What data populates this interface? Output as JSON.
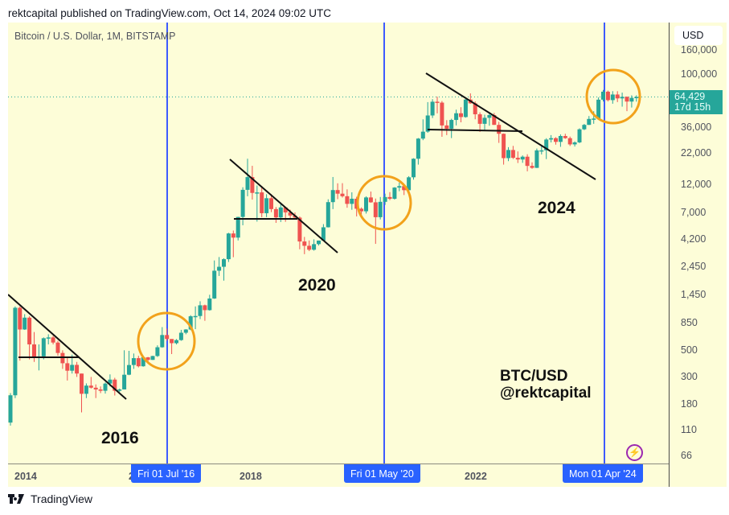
{
  "header": {
    "published": "rektcapital published on TradingView.com, Oct 14, 2024 09:02 UTC"
  },
  "chart": {
    "symbol_label": "Bitcoin / U.S. Dollar, 1M, BITSTAMP",
    "currency": "USD",
    "last_price": "64,429",
    "countdown": "17d 15h",
    "price_ticks": [
      "160,000",
      "100,000",
      "36,000",
      "22,000",
      "12,000",
      "7,000",
      "4,200",
      "2,450",
      "1,450",
      "850",
      "500",
      "300",
      "180",
      "110",
      "66"
    ],
    "year_labels": [
      "2014",
      "2",
      "2018",
      "2022"
    ],
    "date_badges": [
      "Fri 01 Jul '16",
      "Fri 01 May '20",
      "Mon 01 Apr '24"
    ],
    "annotations": {
      "y2016": "2016",
      "y2020": "2020",
      "y2024": "2024",
      "pair": "BTC/USD",
      "handle": "@rektcapital"
    },
    "colors": {
      "up": "#26a69a",
      "down": "#ef5350",
      "halving_line": "#3d5afe",
      "circle": "#f2a21b",
      "background": "#fdfdd8",
      "badge": "#2962ff",
      "bolt": "#9c27b0"
    }
  },
  "footer": {
    "brand": "TradingView"
  },
  "chart_data": {
    "type": "candlestick",
    "title": "Bitcoin / U.S. Dollar, 1M, BITSTAMP",
    "yscale": "log",
    "ylim": [
      60,
      180000
    ],
    "y_ticks": [
      160000,
      100000,
      36000,
      22000,
      12000,
      7000,
      4200,
      2450,
      1450,
      850,
      500,
      300,
      180,
      110,
      66
    ],
    "x_ticks": [
      "2014",
      "2016",
      "2018",
      "2020",
      "2022",
      "2024"
    ],
    "halving_markers": [
      "2016-07-01",
      "2020-05-01",
      "2024-04-01"
    ],
    "last_price": 64429,
    "start_month": "2013-10",
    "candles_ohlc": [
      [
        125,
        211,
        220,
        118
      ],
      [
        211,
        1130,
        1160,
        200
      ],
      [
        1130,
        745,
        1160,
        410
      ],
      [
        745,
        935,
        1000,
        740
      ],
      [
        935,
        560,
        960,
        420
      ],
      [
        560,
        440,
        710,
        400
      ],
      [
        440,
        445,
        560,
        340
      ],
      [
        445,
        630,
        640,
        420
      ],
      [
        630,
        640,
        680,
        560
      ],
      [
        640,
        580,
        660,
        560
      ],
      [
        580,
        475,
        600,
        450
      ],
      [
        475,
        390,
        500,
        350
      ],
      [
        390,
        338,
        440,
        280
      ],
      [
        338,
        378,
        460,
        320
      ],
      [
        378,
        320,
        400,
        300
      ],
      [
        320,
        217,
        320,
        152
      ],
      [
        217,
        254,
        265,
        200
      ],
      [
        254,
        244,
        300,
        240
      ],
      [
        244,
        236,
        260,
        200
      ],
      [
        236,
        230,
        250,
        220
      ],
      [
        230,
        264,
        270,
        218
      ],
      [
        264,
        285,
        315,
        250
      ],
      [
        285,
        230,
        295,
        210
      ],
      [
        230,
        236,
        240,
        225
      ],
      [
        236,
        313,
        500,
        236
      ],
      [
        313,
        377,
        495,
        310
      ],
      [
        377,
        430,
        470,
        350
      ],
      [
        430,
        368,
        450,
        360
      ],
      [
        368,
        437,
        445,
        365
      ],
      [
        437,
        416,
        440,
        400
      ],
      [
        416,
        448,
        450,
        415
      ],
      [
        448,
        530,
        550,
        440
      ],
      [
        530,
        670,
        780,
        525
      ],
      [
        670,
        621,
        760,
        600
      ],
      [
        621,
        573,
        620,
        465
      ],
      [
        573,
        608,
        620,
        560
      ],
      [
        608,
        700,
        740,
        600
      ],
      [
        700,
        745,
        750,
        680
      ],
      [
        745,
        960,
        980,
        735
      ],
      [
        960,
        965,
        1160,
        750
      ],
      [
        965,
        1185,
        1280,
        910
      ],
      [
        1185,
        1080,
        1200,
        880
      ],
      [
        1080,
        1350,
        1450,
        1070
      ],
      [
        1350,
        2300,
        2800,
        1340
      ],
      [
        2300,
        2480,
        2990,
        2080
      ],
      [
        2480,
        2870,
        2920,
        1900
      ],
      [
        2870,
        4700,
        4760,
        2720
      ],
      [
        4700,
        4340,
        4970,
        2980
      ],
      [
        4340,
        6450,
        6470,
        4110
      ],
      [
        6450,
        10850,
        11400,
        5500
      ],
      [
        10850,
        13850,
        19700,
        9600
      ],
      [
        13850,
        10230,
        17200,
        9000
      ],
      [
        10230,
        10330,
        11800,
        5900
      ],
      [
        10330,
        6930,
        11700,
        6420
      ],
      [
        6930,
        9240,
        9980,
        6430
      ],
      [
        9240,
        7500,
        10000,
        7080
      ],
      [
        7500,
        6390,
        7800,
        5760
      ],
      [
        6390,
        7740,
        8500,
        5860
      ],
      [
        7740,
        7040,
        7800,
        5880
      ],
      [
        7040,
        6630,
        7420,
        6120
      ],
      [
        6630,
        6370,
        7030,
        6170
      ],
      [
        6370,
        4030,
        6520,
        3470
      ],
      [
        4030,
        3710,
        4400,
        3160
      ],
      [
        3710,
        3440,
        4110,
        3350
      ],
      [
        3440,
        3830,
        4200,
        3380
      ],
      [
        3830,
        4100,
        4110,
        3730
      ],
      [
        4100,
        5290,
        5620,
        4090
      ],
      [
        5290,
        8570,
        9050,
        5270
      ],
      [
        8570,
        10800,
        13880,
        7500
      ],
      [
        10800,
        10080,
        12300,
        9080
      ],
      [
        10080,
        9600,
        12330,
        9350
      ],
      [
        9600,
        8290,
        10950,
        7700
      ],
      [
        8290,
        9150,
        10350,
        7400
      ],
      [
        9150,
        7550,
        9500,
        6520
      ],
      [
        7550,
        7190,
        7740,
        6430
      ],
      [
        7190,
        9380,
        9580,
        6880
      ],
      [
        9380,
        8540,
        10500,
        8470
      ],
      [
        8540,
        6420,
        9180,
        3850
      ],
      [
        6420,
        8620,
        9460,
        6150
      ],
      [
        8620,
        9450,
        10080,
        8120
      ],
      [
        9450,
        9140,
        10380,
        8900
      ],
      [
        9140,
        11330,
        11430,
        9000
      ],
      [
        11330,
        11650,
        12470,
        10570
      ],
      [
        11650,
        10780,
        12050,
        9820
      ],
      [
        10780,
        13800,
        14100,
        10370
      ],
      [
        13800,
        19700,
        19900,
        13200
      ],
      [
        19700,
        28990,
        29300,
        17600
      ],
      [
        28990,
        33110,
        41950,
        28130
      ],
      [
        33110,
        45170,
        58350,
        32400
      ],
      [
        45170,
        58800,
        61790,
        43000
      ],
      [
        58800,
        57800,
        64850,
        47040
      ],
      [
        57800,
        37300,
        59590,
        30000
      ],
      [
        37300,
        35040,
        41290,
        31000
      ],
      [
        35040,
        41460,
        42410,
        29280
      ],
      [
        41460,
        47130,
        50500,
        37340
      ],
      [
        47130,
        43820,
        52900,
        39600
      ],
      [
        43820,
        61300,
        62000,
        43300
      ],
      [
        61300,
        57000,
        69000,
        56500
      ],
      [
        57000,
        46200,
        59200,
        42000
      ],
      [
        46200,
        38480,
        47950,
        32950
      ],
      [
        38480,
        43190,
        45850,
        34300
      ],
      [
        43190,
        45540,
        48190,
        37100
      ],
      [
        45540,
        37710,
        47440,
        37700
      ],
      [
        37710,
        31790,
        40000,
        26700
      ],
      [
        31790,
        19930,
        31990,
        17600
      ],
      [
        19930,
        23300,
        24600,
        18800
      ],
      [
        23300,
        20050,
        25200,
        19600
      ],
      [
        20050,
        19420,
        22670,
        18150
      ],
      [
        19420,
        20490,
        20990,
        18220
      ],
      [
        20490,
        17170,
        21470,
        15480
      ],
      [
        17170,
        16540,
        18400,
        16250
      ],
      [
        16540,
        23130,
        23950,
        16500
      ],
      [
        23130,
        23140,
        25250,
        21400
      ],
      [
        23140,
        28470,
        29190,
        19570
      ],
      [
        28470,
        29230,
        31000,
        26940
      ],
      [
        29230,
        27220,
        29800,
        25820
      ],
      [
        27220,
        30470,
        31430,
        24750
      ],
      [
        30470,
        29230,
        31810,
        28860
      ],
      [
        29230,
        25940,
        30150,
        25170
      ],
      [
        25940,
        26960,
        27480,
        24900
      ],
      [
        26960,
        34640,
        35280,
        26550
      ],
      [
        34640,
        37720,
        38420,
        34100
      ],
      [
        37720,
        42270,
        44700,
        37630
      ],
      [
        42270,
        42580,
        48970,
        38500
      ],
      [
        42580,
        61170,
        63930,
        41880
      ],
      [
        61170,
        71290,
        73780,
        59100
      ],
      [
        71290,
        60640,
        72780,
        59110
      ],
      [
        60640,
        67520,
        71980,
        56560
      ],
      [
        67520,
        62670,
        71950,
        58400
      ],
      [
        62670,
        64610,
        70010,
        53500
      ],
      [
        64610,
        58970,
        65100,
        49050
      ],
      [
        58970,
        63300,
        66500,
        52600
      ],
      [
        63300,
        64429,
        66500,
        58900
      ]
    ]
  }
}
